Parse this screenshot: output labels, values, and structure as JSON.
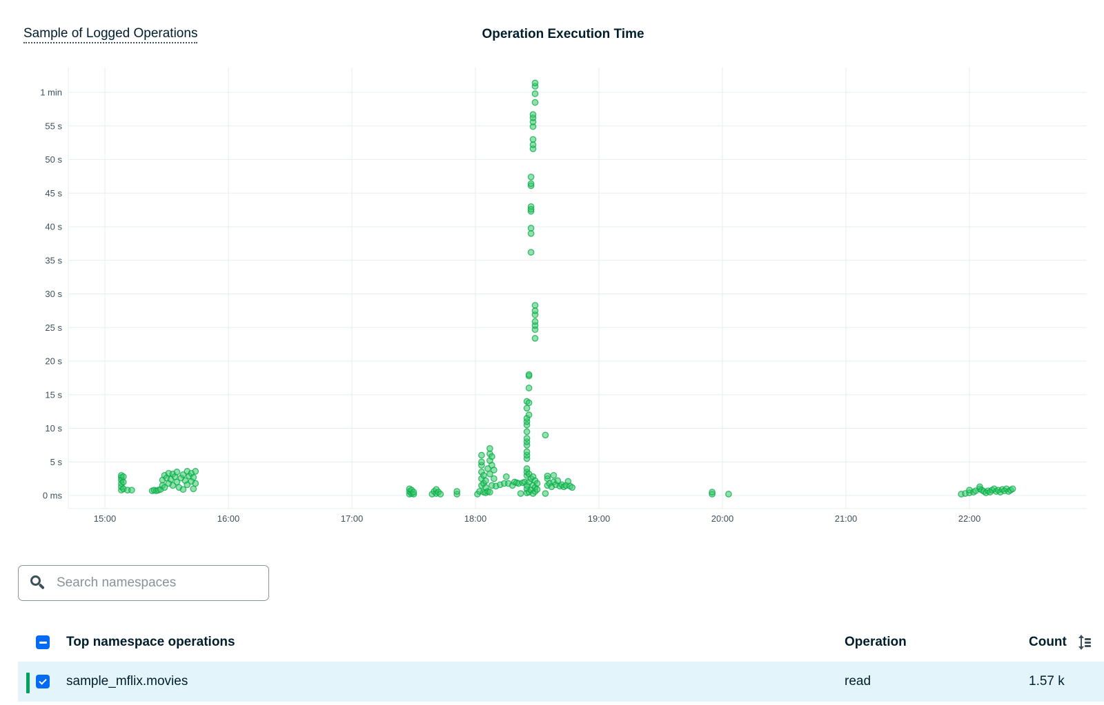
{
  "header": {
    "link_label": "Sample of Logged Operations",
    "chart_title": "Operation Execution Time"
  },
  "colors": {
    "point_fill": "#38c96a",
    "point_stroke": "#00a846",
    "grid": "#e7eeec",
    "selected_row_bg": "#e3f4fb",
    "checkbox": "#016bf8",
    "row_indicator": "#00a35c"
  },
  "chart_data": {
    "type": "scatter",
    "title": "Operation Execution Time",
    "xlabel": "",
    "ylabel": "",
    "x_ticks": [
      "15:00",
      "16:00",
      "17:00",
      "18:00",
      "19:00",
      "20:00",
      "21:00",
      "22:00"
    ],
    "y_ticks": [
      "0 ms",
      "5 s",
      "10 s",
      "15 s",
      "20 s",
      "25 s",
      "30 s",
      "35 s",
      "40 s",
      "45 s",
      "50 s",
      "55 s",
      "1 min"
    ],
    "xlim": [
      "14:42",
      "22:55"
    ],
    "ylim_seconds": [
      -2,
      64
    ],
    "grid": true,
    "series": [
      {
        "values": [
          [
            "15:08",
            0.8
          ],
          [
            "15:08",
            1.3
          ],
          [
            "15:08",
            1.8
          ],
          [
            "15:08",
            2.3
          ],
          [
            "15:08",
            2.7
          ],
          [
            "15:08",
            3.0
          ],
          [
            "15:09",
            1.0
          ],
          [
            "15:09",
            2.0
          ],
          [
            "15:09",
            2.8
          ],
          [
            "15:11",
            0.8
          ],
          [
            "15:13",
            0.8
          ],
          [
            "15:23",
            0.7
          ],
          [
            "15:24",
            0.8
          ],
          [
            "15:25",
            0.7
          ],
          [
            "15:26",
            0.8
          ],
          [
            "15:27",
            0.9
          ],
          [
            "15:28",
            1.5
          ],
          [
            "15:28",
            2.3
          ],
          [
            "15:29",
            3.0
          ],
          [
            "15:29",
            1.2
          ],
          [
            "15:30",
            2.6
          ],
          [
            "15:31",
            3.3
          ],
          [
            "15:31",
            1.8
          ],
          [
            "15:32",
            2.4
          ],
          [
            "15:33",
            3.2
          ],
          [
            "15:33",
            1.5
          ],
          [
            "15:34",
            2.8
          ],
          [
            "15:35",
            3.5
          ],
          [
            "15:35",
            2.0
          ],
          [
            "15:36",
            1.2
          ],
          [
            "15:37",
            2.6
          ],
          [
            "15:38",
            3.1
          ],
          [
            "15:38",
            0.9
          ],
          [
            "15:39",
            2.2
          ],
          [
            "15:40",
            3.6
          ],
          [
            "15:40",
            1.6
          ],
          [
            "15:41",
            2.9
          ],
          [
            "15:42",
            3.3
          ],
          [
            "15:42",
            2.1
          ],
          [
            "15:43",
            1.0
          ],
          [
            "15:43",
            2.7
          ],
          [
            "15:44",
            3.6
          ],
          [
            "15:44",
            1.8
          ],
          [
            "17:28",
            0.2
          ],
          [
            "17:28",
            0.6
          ],
          [
            "17:28",
            1.0
          ],
          [
            "17:29",
            0.3
          ],
          [
            "17:29",
            0.8
          ],
          [
            "17:30",
            0.2
          ],
          [
            "17:30",
            0.5
          ],
          [
            "17:39",
            0.2
          ],
          [
            "17:40",
            0.6
          ],
          [
            "17:41",
            0.9
          ],
          [
            "17:41",
            0.3
          ],
          [
            "17:42",
            0.5
          ],
          [
            "17:43",
            0.2
          ],
          [
            "17:51",
            0.2
          ],
          [
            "17:51",
            0.6
          ],
          [
            "18:01",
            0.2
          ],
          [
            "18:02",
            0.6
          ],
          [
            "18:03",
            1.5
          ],
          [
            "18:03",
            2.5
          ],
          [
            "18:03",
            3.5
          ],
          [
            "18:03",
            4.5
          ],
          [
            "18:03",
            5.0
          ],
          [
            "18:03",
            6.0
          ],
          [
            "18:04",
            0.5
          ],
          [
            "18:04",
            1.8
          ],
          [
            "18:04",
            3.0
          ],
          [
            "18:05",
            0.4
          ],
          [
            "18:05",
            1.2
          ],
          [
            "18:05",
            2.2
          ],
          [
            "18:06",
            0.6
          ],
          [
            "18:06",
            4.0
          ],
          [
            "18:07",
            0.5
          ],
          [
            "18:07",
            3.2
          ],
          [
            "18:07",
            5.2
          ],
          [
            "18:07",
            6.2
          ],
          [
            "18:07",
            7.0
          ],
          [
            "18:08",
            1.5
          ],
          [
            "18:08",
            4.5
          ],
          [
            "18:08",
            5.8
          ],
          [
            "18:09",
            2.5
          ],
          [
            "18:09",
            3.8
          ],
          [
            "18:10",
            1.4
          ],
          [
            "18:12",
            1.6
          ],
          [
            "18:14",
            1.8
          ],
          [
            "18:15",
            2.8
          ],
          [
            "18:16",
            1.8
          ],
          [
            "18:18",
            1.5
          ],
          [
            "18:19",
            2.0
          ],
          [
            "18:20",
            1.9
          ],
          [
            "18:21",
            1.8
          ],
          [
            "18:22",
            0.3
          ],
          [
            "18:23",
            1.9
          ],
          [
            "18:24",
            2.0
          ],
          [
            "18:25",
            0.4
          ],
          [
            "18:25",
            1.0
          ],
          [
            "18:25",
            1.5
          ],
          [
            "18:25",
            3.0
          ],
          [
            "18:25",
            3.5
          ],
          [
            "18:25",
            4.0
          ],
          [
            "18:25",
            5.5
          ],
          [
            "18:25",
            6.0
          ],
          [
            "18:25",
            6.5
          ],
          [
            "18:25",
            7.5
          ],
          [
            "18:25",
            8.0
          ],
          [
            "18:25",
            8.5
          ],
          [
            "18:25",
            9.5
          ],
          [
            "18:25",
            10.5
          ],
          [
            "18:25",
            11.0
          ],
          [
            "18:25",
            11.5
          ],
          [
            "18:25",
            13.0
          ],
          [
            "18:25",
            14.0
          ],
          [
            "18:26",
            0.5
          ],
          [
            "18:26",
            2.0
          ],
          [
            "18:26",
            3.2
          ],
          [
            "18:26",
            12.0
          ],
          [
            "18:26",
            13.8
          ],
          [
            "18:26",
            16.0
          ],
          [
            "18:26",
            17.8
          ],
          [
            "18:26",
            18.0
          ],
          [
            "18:27",
            0.8
          ],
          [
            "18:27",
            2.5
          ],
          [
            "18:27",
            36.2
          ],
          [
            "18:27",
            39.0
          ],
          [
            "18:27",
            39.8
          ],
          [
            "18:27",
            42.3
          ],
          [
            "18:27",
            43.0
          ],
          [
            "18:27",
            42.6
          ],
          [
            "18:27",
            46.1
          ],
          [
            "18:27",
            46.4
          ],
          [
            "18:27",
            47.4
          ],
          [
            "18:28",
            0.3
          ],
          [
            "18:28",
            1.5
          ],
          [
            "18:28",
            2.8
          ],
          [
            "18:28",
            51.6
          ],
          [
            "18:28",
            52.2
          ],
          [
            "18:28",
            53.0
          ],
          [
            "18:28",
            54.9
          ],
          [
            "18:28",
            55.6
          ],
          [
            "18:28",
            56.2
          ],
          [
            "18:28",
            56.7
          ],
          [
            "18:29",
            0.6
          ],
          [
            "18:29",
            1.2
          ],
          [
            "18:29",
            2.2
          ],
          [
            "18:29",
            23.4
          ],
          [
            "18:29",
            24.7
          ],
          [
            "18:29",
            25.3
          ],
          [
            "18:29",
            25.9
          ],
          [
            "18:29",
            26.9
          ],
          [
            "18:29",
            27.5
          ],
          [
            "18:29",
            28.3
          ],
          [
            "18:29",
            58.5
          ],
          [
            "18:29",
            59.8
          ],
          [
            "18:29",
            60.9
          ],
          [
            "18:29",
            61.4
          ],
          [
            "18:30",
            1.8
          ],
          [
            "18:30",
            0.9
          ],
          [
            "18:34",
            0.3
          ],
          [
            "18:34",
            9.0
          ],
          [
            "18:35",
            1.5
          ],
          [
            "18:35",
            2.5
          ],
          [
            "18:35",
            2.9
          ],
          [
            "18:36",
            1.8
          ],
          [
            "18:37",
            1.3
          ],
          [
            "18:38",
            2.0
          ],
          [
            "18:38",
            3.0
          ],
          [
            "18:39",
            1.6
          ],
          [
            "18:40",
            2.2
          ],
          [
            "18:41",
            1.4
          ],
          [
            "18:42",
            1.6
          ],
          [
            "18:43",
            1.3
          ],
          [
            "18:44",
            1.5
          ],
          [
            "18:45",
            2.1
          ],
          [
            "18:46",
            1.4
          ],
          [
            "18:47",
            1.2
          ],
          [
            "19:55",
            0.2
          ],
          [
            "19:55",
            0.5
          ],
          [
            "20:03",
            0.2
          ],
          [
            "21:56",
            0.2
          ],
          [
            "21:58",
            0.3
          ],
          [
            "22:00",
            0.4
          ],
          [
            "22:00",
            0.8
          ],
          [
            "22:02",
            0.5
          ],
          [
            "22:03",
            0.7
          ],
          [
            "22:05",
            1.0
          ],
          [
            "22:05",
            1.3
          ],
          [
            "22:06",
            0.8
          ],
          [
            "22:07",
            0.6
          ],
          [
            "22:08",
            0.4
          ],
          [
            "22:09",
            0.7
          ],
          [
            "22:10",
            0.5
          ],
          [
            "22:11",
            0.8
          ],
          [
            "22:12",
            1.0
          ],
          [
            "22:13",
            0.6
          ],
          [
            "22:14",
            0.8
          ],
          [
            "22:15",
            0.5
          ],
          [
            "22:16",
            0.9
          ],
          [
            "22:17",
            0.7
          ],
          [
            "22:18",
            1.0
          ],
          [
            "22:19",
            0.6
          ],
          [
            "22:20",
            0.8
          ],
          [
            "22:21",
            1.0
          ]
        ]
      }
    ]
  },
  "search": {
    "placeholder": "Search namespaces",
    "value": ""
  },
  "table": {
    "columns": [
      "Top namespace operations",
      "Operation",
      "Count"
    ],
    "rows": [
      {
        "namespace": "sample_mflix.movies",
        "operation": "read",
        "count": "1.57 k",
        "selected": true
      }
    ]
  }
}
